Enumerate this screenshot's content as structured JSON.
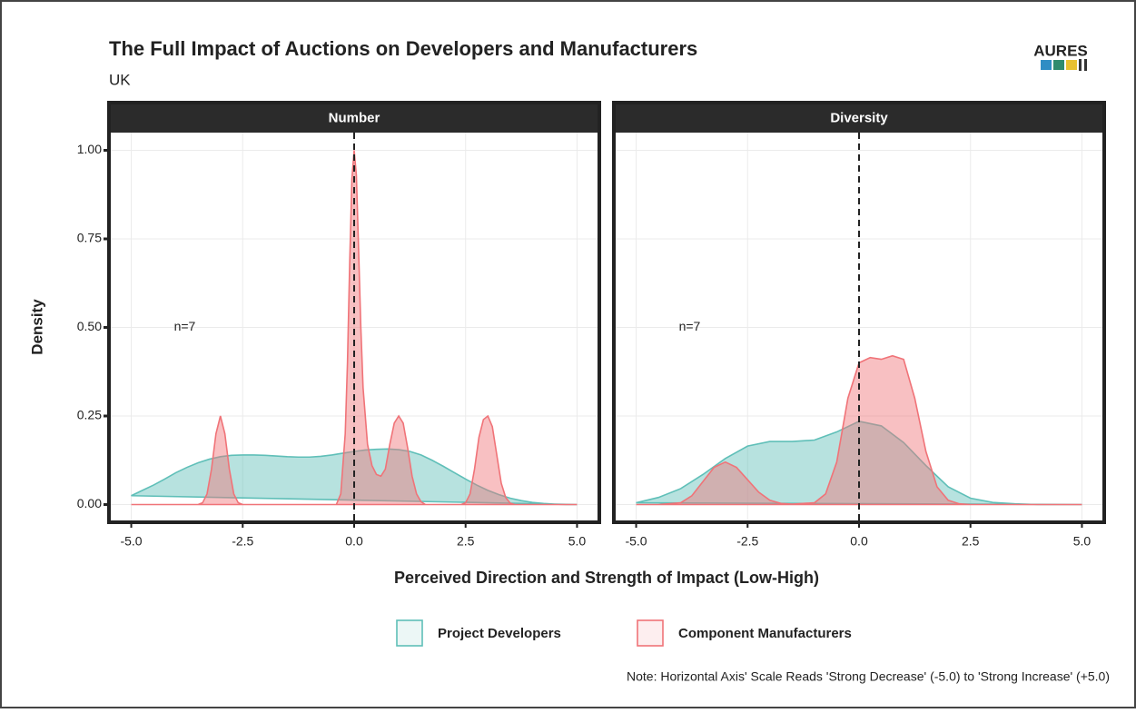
{
  "title": "The Full Impact of Auctions on Developers and Manufacturers",
  "subtitle": "UK",
  "x_label": "Perceived Direction and Strength of Impact (Low-High)",
  "y_label": "Density",
  "note": "Note: Horizontal Axis' Scale Reads 'Strong Decrease' (-5.0) to 'Strong Increase' (+5.0)",
  "logo": "AURES",
  "chart_data": [
    {
      "type": "area",
      "title": "Number",
      "annotation": {
        "text": "n=7",
        "x": -3.8,
        "y": 0.5
      },
      "reference_line_x": 0,
      "xlim": [
        -5.5,
        5.5
      ],
      "ylim": [
        -0.05,
        1.05
      ],
      "xticks": [
        {
          "value": -5,
          "label": "-5.0"
        },
        {
          "value": -2.5,
          "label": "-2.5"
        },
        {
          "value": 0,
          "label": "0.0"
        },
        {
          "value": 2.5,
          "label": "2.5"
        },
        {
          "value": 5,
          "label": "5.0"
        }
      ],
      "yticks": [
        {
          "value": 0,
          "label": "0.00"
        },
        {
          "value": 0.25,
          "label": "0.25"
        },
        {
          "value": 0.5,
          "label": "0.50"
        },
        {
          "value": 0.75,
          "label": "0.75"
        },
        {
          "value": 1,
          "label": "1.00"
        }
      ],
      "grid": true,
      "series": [
        {
          "name": "Project Developers",
          "color": "#5fbfb8",
          "x": [
            -5,
            -4.75,
            -4.5,
            -4.25,
            -4,
            -3.75,
            -3.5,
            -3.25,
            -3,
            -2.75,
            -2.5,
            -2.25,
            -2,
            -1.75,
            -1.5,
            -1.25,
            -1,
            -0.75,
            -0.5,
            -0.25,
            0,
            0.25,
            0.5,
            0.75,
            1,
            1.25,
            1.5,
            1.75,
            2,
            2.25,
            2.5,
            2.75,
            3,
            3.25,
            3.5,
            3.75,
            4,
            4.25,
            4.5,
            4.75,
            5
          ],
          "values": [
            0.025,
            0.04,
            0.055,
            0.072,
            0.09,
            0.105,
            0.118,
            0.128,
            0.135,
            0.139,
            0.14,
            0.14,
            0.139,
            0.137,
            0.135,
            0.134,
            0.134,
            0.136,
            0.14,
            0.145,
            0.15,
            0.154,
            0.156,
            0.157,
            0.155,
            0.15,
            0.14,
            0.125,
            0.108,
            0.09,
            0.072,
            0.055,
            0.04,
            0.028,
            0.018,
            0.011,
            0.006,
            0.003,
            0.001,
            0,
            0
          ]
        },
        {
          "name": "Component Manufacturers",
          "color": "#f07378",
          "x": [
            -5,
            -3.5,
            -3.4,
            -3.3,
            -3.2,
            -3.1,
            -3.0,
            -2.9,
            -2.8,
            -2.7,
            -2.6,
            -2.5,
            -0.4,
            -0.3,
            -0.2,
            -0.15,
            -0.1,
            -0.05,
            0,
            0.05,
            0.1,
            0.15,
            0.2,
            0.3,
            0.4,
            0.5,
            0.6,
            0.7,
            0.8,
            0.9,
            1.0,
            1.1,
            1.2,
            1.3,
            1.4,
            1.5,
            1.6,
            2.4,
            2.5,
            2.6,
            2.7,
            2.8,
            2.9,
            3.0,
            3.1,
            3.2,
            3.3,
            3.4,
            3.5,
            3.6,
            5
          ],
          "values": [
            0,
            0,
            0.005,
            0.03,
            0.1,
            0.2,
            0.25,
            0.2,
            0.1,
            0.03,
            0.005,
            0,
            0,
            0.03,
            0.2,
            0.4,
            0.68,
            0.92,
            1.0,
            0.93,
            0.72,
            0.5,
            0.33,
            0.17,
            0.11,
            0.085,
            0.08,
            0.1,
            0.17,
            0.23,
            0.25,
            0.23,
            0.16,
            0.08,
            0.03,
            0.008,
            0,
            0,
            0.005,
            0.03,
            0.1,
            0.19,
            0.24,
            0.25,
            0.22,
            0.14,
            0.06,
            0.02,
            0.004,
            0,
            0
          ]
        }
      ]
    },
    {
      "type": "area",
      "title": "Diversity",
      "annotation": {
        "text": "n=7",
        "x": -3.8,
        "y": 0.5
      },
      "reference_line_x": 0,
      "xlim": [
        -5.5,
        5.5
      ],
      "ylim": [
        -0.05,
        1.05
      ],
      "xticks": [
        {
          "value": -5,
          "label": "-5.0"
        },
        {
          "value": -2.5,
          "label": "-2.5"
        },
        {
          "value": 0,
          "label": "0.0"
        },
        {
          "value": 2.5,
          "label": "2.5"
        },
        {
          "value": 5,
          "label": "5.0"
        }
      ],
      "yticks": [
        0,
        0.25,
        0.5,
        0.75,
        1
      ],
      "grid": true,
      "series": [
        {
          "color": "#5fbfb8",
          "x": [
            -5,
            -4.5,
            -4,
            -3.5,
            -3,
            -2.5,
            -2,
            -1.5,
            -1,
            -0.5,
            0,
            0.5,
            1,
            1.5,
            2,
            2.5,
            3,
            3.5,
            4,
            5
          ],
          "values": [
            0.005,
            0.02,
            0.045,
            0.085,
            0.13,
            0.165,
            0.178,
            0.178,
            0.182,
            0.205,
            0.235,
            0.222,
            0.175,
            0.11,
            0.05,
            0.018,
            0.006,
            0.002,
            0,
            0
          ]
        },
        {
          "color": "#f07378",
          "x": [
            -5,
            -4.5,
            -4,
            -3.75,
            -3.5,
            -3.25,
            -3,
            -2.75,
            -2.5,
            -2.25,
            -2,
            -1.75,
            -1.5,
            -1,
            -0.75,
            -0.5,
            -0.25,
            0,
            0.25,
            0.5,
            0.75,
            1,
            1.25,
            1.5,
            1.75,
            2,
            2.25,
            2.5,
            5
          ],
          "values": [
            0,
            0,
            0.005,
            0.025,
            0.065,
            0.105,
            0.12,
            0.105,
            0.07,
            0.035,
            0.012,
            0.003,
            0.001,
            0.005,
            0.03,
            0.12,
            0.3,
            0.4,
            0.415,
            0.41,
            0.42,
            0.41,
            0.3,
            0.15,
            0.05,
            0.012,
            0.002,
            0,
            0
          ]
        }
      ]
    }
  ]
}
